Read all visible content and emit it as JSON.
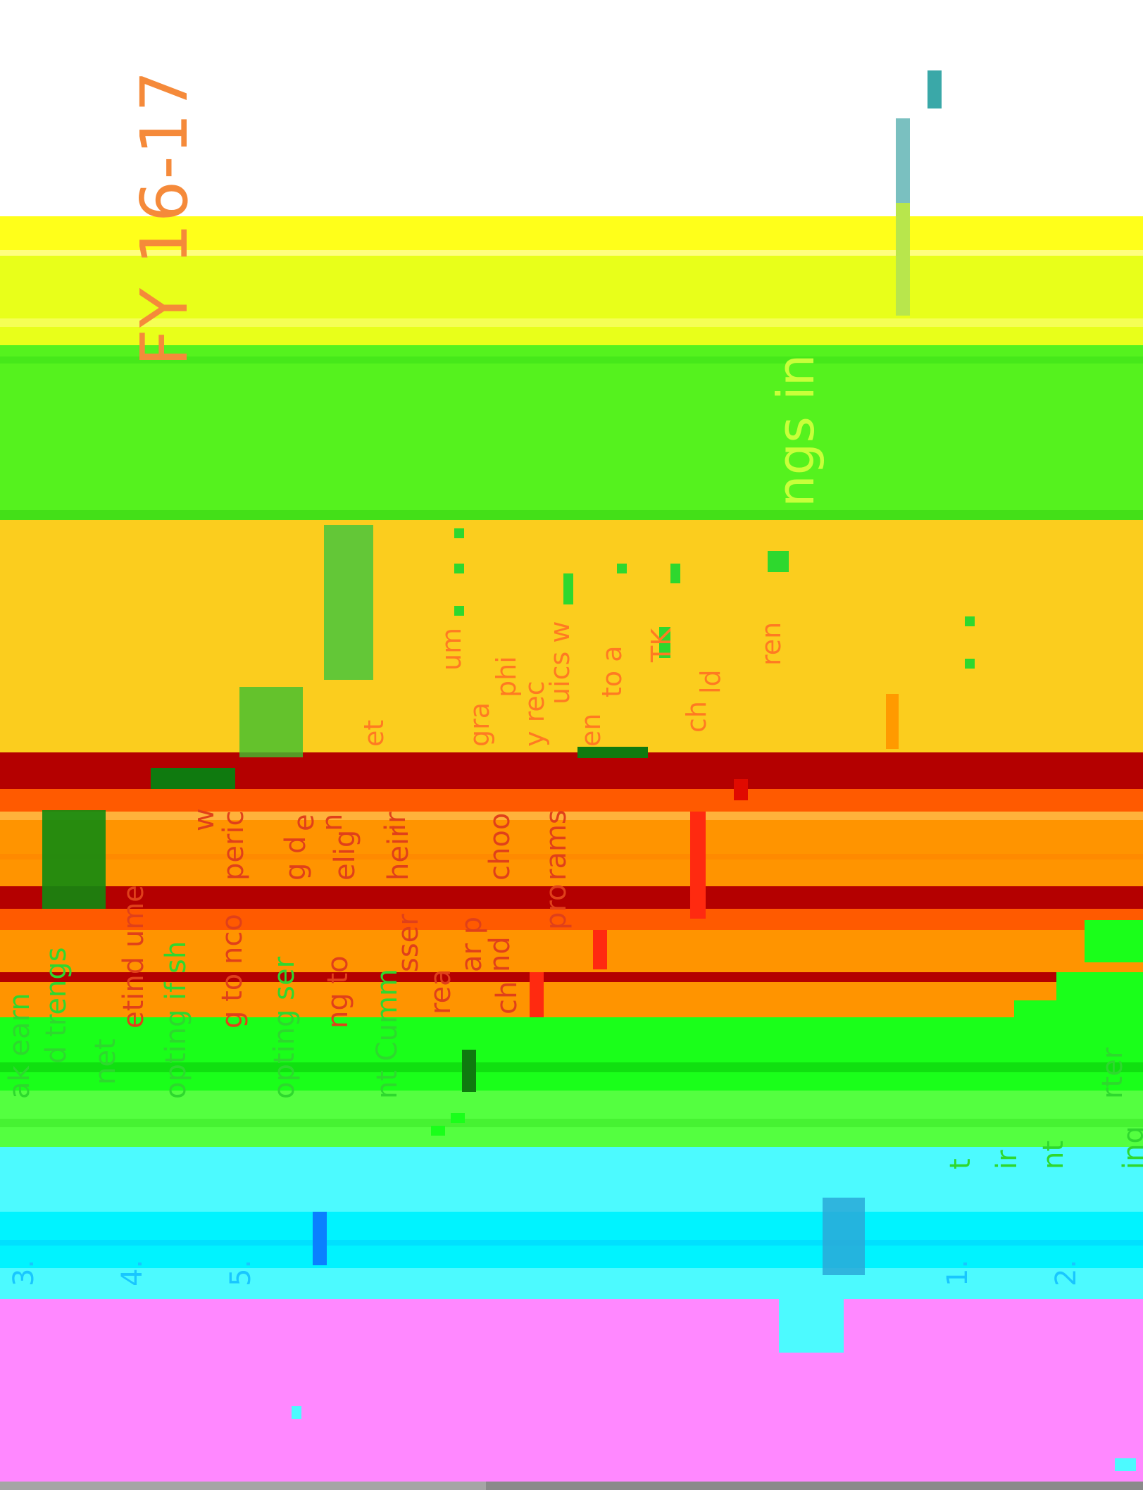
{
  "watermark": {
    "text": "FY 16-17"
  },
  "glyph_fragments": {
    "upper_right": "ngs in",
    "col_a": "um",
    "col_b": "phi",
    "col_c": "uics w",
    "col_d": "to a",
    "col_e": "TK",
    "col_f": "ld",
    "col_g": "ren",
    "col_h": "et",
    "col_i": "gra",
    "col_j": "y rec",
    "col_k": "en",
    "col_l": "ch"
  },
  "mid_fragments": [
    "w",
    "peric",
    "g d",
    "elig",
    "heir",
    "choo",
    "rams",
    "e",
    "n",
    "ir"
  ],
  "lower_fragments": [
    "ak earn",
    "d trengs",
    "net",
    "etind ume",
    "opting if sh",
    "g to nco",
    "opting ser",
    "ng to",
    "nt Cumm",
    "sser",
    "rea",
    "ar p",
    "nd",
    "ch",
    "pro"
  ],
  "numbers": [
    "3.",
    "4.",
    "5.",
    "1.",
    "2."
  ],
  "right_fragments": {
    "a": "rter",
    "b": "ing",
    "c": "nt",
    "d": "ir",
    "e": "t"
  },
  "colors": {
    "yellow": "#ffff1a",
    "lime": "#e8ff1a",
    "green": "#55f21e",
    "amber": "#fbcd1e",
    "crimson": "#b40000",
    "orange_red": "#ff5a00",
    "orange": "#ff9400",
    "bright_green": "#1aff1a",
    "soft_green": "#54ff40",
    "cyan": "#00f3ff",
    "light_cyan": "#4cfaff",
    "pink": "#ff88ff",
    "grey": "#8a8a8a",
    "text_orange": "#ff7a22",
    "text_red": "#e0401a",
    "text_green": "#2ed82e",
    "text_cyan": "#19c6ff"
  }
}
